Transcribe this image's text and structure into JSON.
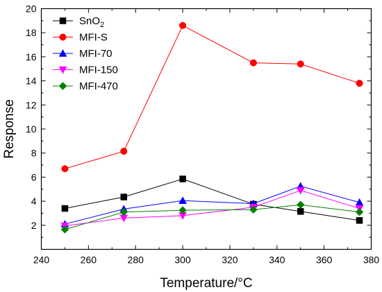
{
  "chart_data": {
    "type": "line",
    "title": "",
    "xlabel": "Temperature/°C",
    "ylabel": "Response",
    "xlim": [
      240,
      380
    ],
    "ylim": [
      0,
      20
    ],
    "xticks": [
      240,
      260,
      280,
      300,
      320,
      340,
      360,
      380
    ],
    "yticks": [
      2,
      4,
      6,
      8,
      10,
      12,
      14,
      16,
      18,
      20
    ],
    "grid": false,
    "legend_position": "top-left",
    "x": [
      250,
      275,
      300,
      330,
      350,
      375
    ],
    "series": [
      {
        "name": "SnO",
        "name_subscript": "2",
        "color": "#000000",
        "marker": "square",
        "values": [
          3.4,
          4.35,
          5.85,
          3.75,
          3.15,
          2.4
        ]
      },
      {
        "name": "MFI-S",
        "color": "#ff0000",
        "marker": "circle",
        "values": [
          6.7,
          8.15,
          18.6,
          15.5,
          15.4,
          13.8
        ]
      },
      {
        "name": "MFI-70",
        "color": "#0000ff",
        "marker": "triangle-up",
        "values": [
          2.1,
          3.35,
          4.05,
          3.8,
          5.25,
          3.9
        ]
      },
      {
        "name": "MFI-150",
        "color": "#ff00ff",
        "marker": "triangle-down",
        "values": [
          1.95,
          2.6,
          2.8,
          3.5,
          4.9,
          3.4
        ]
      },
      {
        "name": "MFI-470",
        "color": "#008000",
        "marker": "diamond",
        "values": [
          1.65,
          3.1,
          3.25,
          3.3,
          3.7,
          3.1
        ]
      }
    ]
  }
}
